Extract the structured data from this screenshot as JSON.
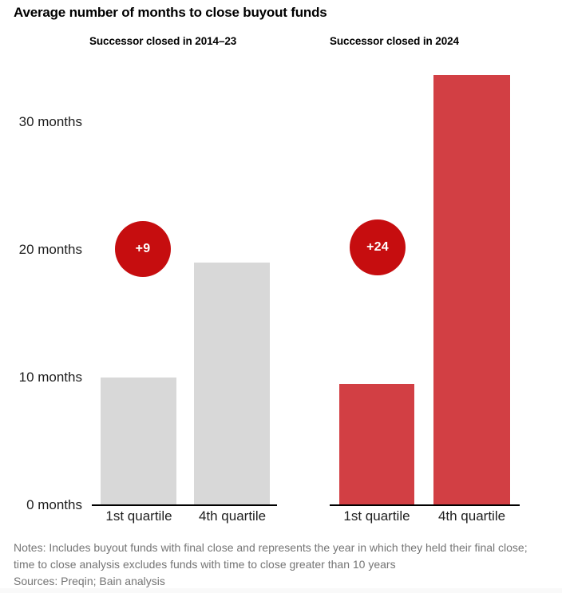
{
  "title": "Average number of months to close buyout funds",
  "colors": {
    "bar_gray": "#d8d8d8",
    "bar_red": "#d23f44",
    "badge_red": "#c60d0f",
    "text_dark": "#1e1e1e",
    "notes_gray": "#757575",
    "axis_black": "#000000"
  },
  "chart_data": {
    "type": "bar",
    "title": "Average number of months to close buyout funds",
    "unit": "months",
    "categories": [
      "1st quartile",
      "4th quartile"
    ],
    "y_axis": {
      "ticks": [
        0,
        10,
        20,
        30
      ],
      "labels": [
        "30 months",
        "20 months",
        "10 months",
        "0 months"
      ],
      "ylim": [
        0,
        35
      ],
      "grid": false
    },
    "legend": "none",
    "panels": [
      {
        "subtitle": "Successor closed in 2014–23",
        "values": [
          10,
          19
        ],
        "delta_badge": "+9",
        "bar_color": "#d8d8d8"
      },
      {
        "subtitle": "Successor closed in 2024",
        "values": [
          9.5,
          33.7
        ],
        "delta_badge": "+24",
        "bar_color": "#d23f44"
      }
    ]
  },
  "notes": {
    "line1": "Notes: Includes buyout funds with final close and represents the year in which they held their final close; time to close analysis excludes funds with time to close greater than 10 years",
    "line2": "Sources: Preqin; Bain analysis"
  }
}
